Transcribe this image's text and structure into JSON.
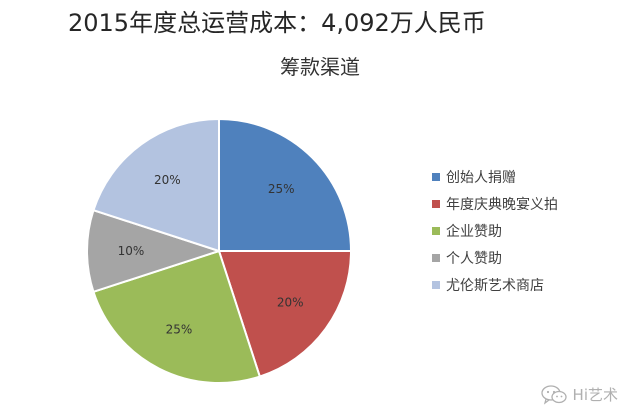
{
  "headline": "2015年度总运营成本：4,092万人民币",
  "watermark": {
    "text": "Hi艺术",
    "icon": "wechat-icon"
  },
  "chart_data": {
    "type": "pie",
    "title": "筹款渠道",
    "legend_position": "right",
    "start_angle_deg": 0,
    "direction": "clockwise-from-top",
    "slices": [
      {
        "label": "创始人捐赠",
        "value": 25,
        "display": "25%",
        "color": "#4f81bd"
      },
      {
        "label": "年度庆典晚宴义拍",
        "value": 20,
        "display": "20%",
        "color": "#c0504d"
      },
      {
        "label": "企业赞助",
        "value": 25,
        "display": "25%",
        "color": "#9bbb59"
      },
      {
        "label": "个人赞助",
        "value": 10,
        "display": "10%",
        "color": "#a5a5a5"
      },
      {
        "label": "尤伦斯艺术商店",
        "value": 20,
        "display": "20%",
        "color": "#b3c3e0"
      }
    ]
  }
}
